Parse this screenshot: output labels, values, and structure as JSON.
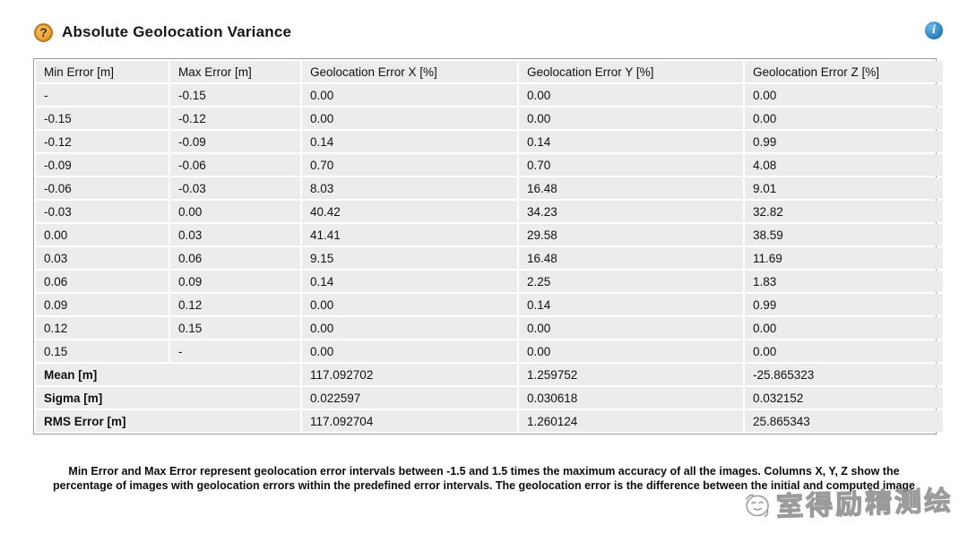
{
  "page": {
    "title": "Absolute Geolocation Variance"
  },
  "icons": {
    "help_glyph": "?",
    "info_glyph": "i",
    "help_icon_color": "#EFA73E",
    "info_icon_color": "#2E86C1"
  },
  "table": {
    "columns": [
      "Min Error [m]",
      "Max Error [m]",
      "Geolocation Error X [%]",
      "Geolocation Error Y [%]",
      "Geolocation Error Z [%]"
    ],
    "rows": [
      [
        "-",
        "-0.15",
        "0.00",
        "0.00",
        "0.00"
      ],
      [
        "-0.15",
        "-0.12",
        "0.00",
        "0.00",
        "0.00"
      ],
      [
        "-0.12",
        "-0.09",
        "0.14",
        "0.14",
        "0.99"
      ],
      [
        "-0.09",
        "-0.06",
        "0.70",
        "0.70",
        "4.08"
      ],
      [
        "-0.06",
        "-0.03",
        "8.03",
        "16.48",
        "9.01"
      ],
      [
        "-0.03",
        "0.00",
        "40.42",
        "34.23",
        "32.82"
      ],
      [
        "0.00",
        "0.03",
        "41.41",
        "29.58",
        "38.59"
      ],
      [
        "0.03",
        "0.06",
        "9.15",
        "16.48",
        "11.69"
      ],
      [
        "0.06",
        "0.09",
        "0.14",
        "2.25",
        "1.83"
      ],
      [
        "0.09",
        "0.12",
        "0.00",
        "0.14",
        "0.99"
      ],
      [
        "0.12",
        "0.15",
        "0.00",
        "0.00",
        "0.00"
      ],
      [
        "0.15",
        "-",
        "0.00",
        "0.00",
        "0.00"
      ]
    ],
    "summary": [
      {
        "label": "Mean [m]",
        "x": "117.092702",
        "y": "1.259752",
        "z": "-25.865323"
      },
      {
        "label": "Sigma [m]",
        "x": "0.022597",
        "y": "0.030618",
        "z": "0.032152"
      },
      {
        "label": "RMS Error [m]",
        "x": "117.092704",
        "y": "1.260124",
        "z": "25.865343"
      }
    ]
  },
  "footer": {
    "line1": "Min Error and Max Error represent geolocation error intervals between -1.5 and 1.5 times the maximum accuracy of all the images. Columns X, Y, Z show the",
    "line2": "percentage of images with geolocation errors within the predefined error intervals. The geolocation error is the difference between the initial and computed image"
  },
  "watermark": {
    "text": "室得励精测绘"
  },
  "colors": {
    "cell_bg": "#ECECEC",
    "table_border": "#9A9A9A",
    "watermark": "#8A8A8A"
  }
}
